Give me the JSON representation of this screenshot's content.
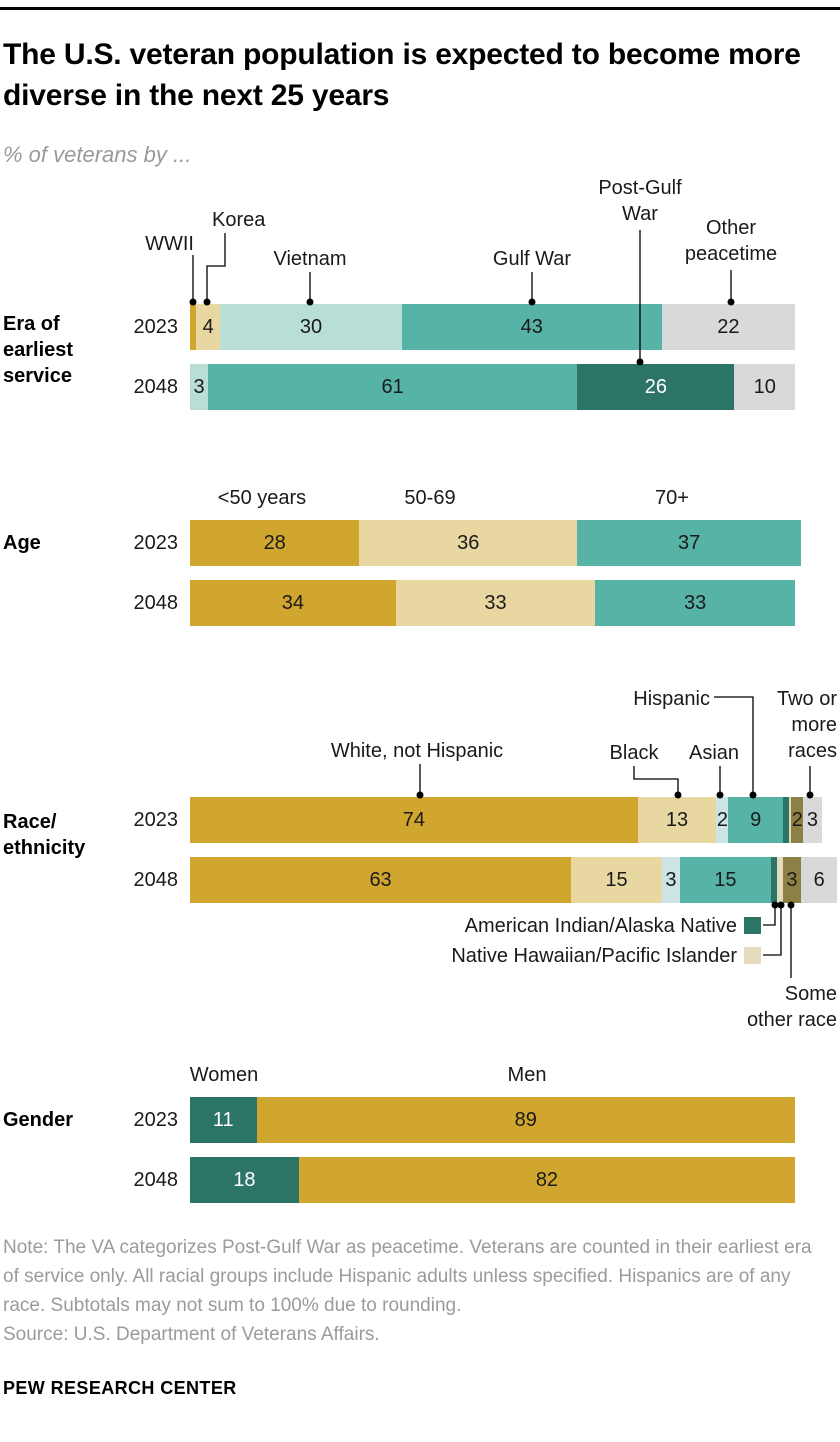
{
  "header": {
    "title": "The U.S. veteran population is expected to become more diverse in the next 25 years",
    "subtitle": "% of veterans by ..."
  },
  "colors": {
    "gold": "#d1a62e",
    "tan": "#e8d7a0",
    "mint": "#b9ded5",
    "teal": "#56b3a6",
    "dark_teal": "#2c7566",
    "gray": "#d9d9d9",
    "pale_blue": "#cde4e4",
    "pale_khaki": "#e5dcc0",
    "olive": "#8d8044"
  },
  "chart_data": [
    {
      "type": "bar",
      "stacked": true,
      "orientation": "horizontal",
      "section": "Era of earliest service",
      "unit": "% of veterans",
      "categories": [
        "WWII",
        "Korea",
        "Vietnam",
        "Gulf War",
        "Post-Gulf War",
        "Other peacetime"
      ],
      "category_colors": [
        "gold",
        "tan",
        "mint",
        "teal",
        "dark_teal",
        "gray"
      ],
      "rows": [
        {
          "label": "2023",
          "values": [
            1,
            4,
            30,
            43,
            0,
            22
          ]
        },
        {
          "label": "2048",
          "values": [
            0,
            0,
            3,
            61,
            26,
            10
          ]
        }
      ]
    },
    {
      "type": "bar",
      "stacked": true,
      "orientation": "horizontal",
      "section": "Age",
      "unit": "% of veterans",
      "categories": [
        "<50 years",
        "50-69",
        "70+"
      ],
      "category_colors": [
        "gold",
        "tan",
        "teal"
      ],
      "rows": [
        {
          "label": "2023",
          "values": [
            28,
            36,
            37
          ]
        },
        {
          "label": "2048",
          "values": [
            34,
            33,
            33
          ]
        }
      ]
    },
    {
      "type": "bar",
      "stacked": true,
      "orientation": "horizontal",
      "section": "Race/\nethnicity",
      "unit": "% of veterans",
      "categories": [
        "White, not Hispanic",
        "Black",
        "Asian",
        "Hispanic",
        "American Indian/Alaska Native",
        "Native Hawaiian/Pacific Islander",
        "Some other race",
        "Two or more races"
      ],
      "category_colors": [
        "gold",
        "tan",
        "pale_blue",
        "teal",
        "dark_teal",
        "pale_khaki",
        "olive",
        "gray"
      ],
      "rows": [
        {
          "label": "2023",
          "values": [
            74,
            13,
            2,
            9,
            1,
            0.4,
            2,
            3
          ]
        },
        {
          "label": "2048",
          "values": [
            63,
            15,
            3,
            15,
            1,
            1,
            3,
            6
          ]
        }
      ]
    },
    {
      "type": "bar",
      "stacked": true,
      "orientation": "horizontal",
      "section": "Gender",
      "unit": "% of veterans",
      "categories": [
        "Women",
        "Men"
      ],
      "category_colors": [
        "dark_teal",
        "gold"
      ],
      "rows": [
        {
          "label": "2023",
          "values": [
            11,
            89
          ]
        },
        {
          "label": "2048",
          "values": [
            18,
            82
          ]
        }
      ]
    }
  ],
  "footer": {
    "note": "Note: The VA categorizes Post-Gulf War as peacetime. Veterans are counted in their earliest era of service only. All racial groups include Hispanic adults unless specified. Hispanics are of any race. Subtotals may not sum to 100% due to rounding.",
    "source": "Source: U.S. Department of Veterans Affairs.",
    "brand": "PEW RESEARCH CENTER"
  }
}
